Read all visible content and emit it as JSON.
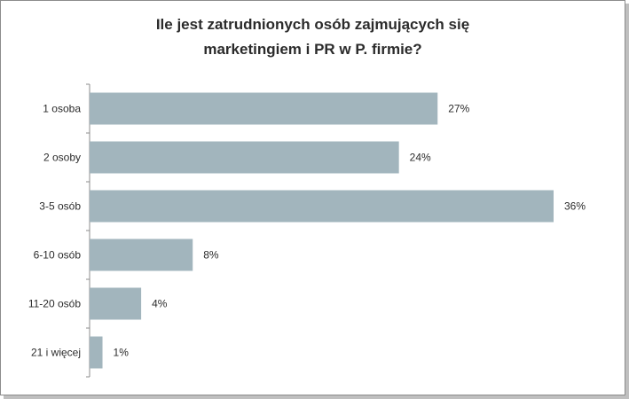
{
  "chart_data": {
    "type": "bar",
    "orientation": "horizontal",
    "title": [
      "Ile jest zatrudnionych osób zajmujących się",
      "marketingiem i PR w P. firmie?"
    ],
    "categories": [
      "1 osoba",
      "2 osoby",
      "3-5 osób",
      "6-10 osób",
      "11-20 osób",
      "21 i więcej"
    ],
    "values": [
      27,
      24,
      36,
      8,
      4,
      1
    ],
    "value_labels": [
      "27%",
      "24%",
      "36%",
      "8%",
      "4%",
      "1%"
    ],
    "unit": "%",
    "xlim": [
      0,
      40
    ],
    "grid": false,
    "legend": "none",
    "bar_color": "#a2b5bd"
  }
}
